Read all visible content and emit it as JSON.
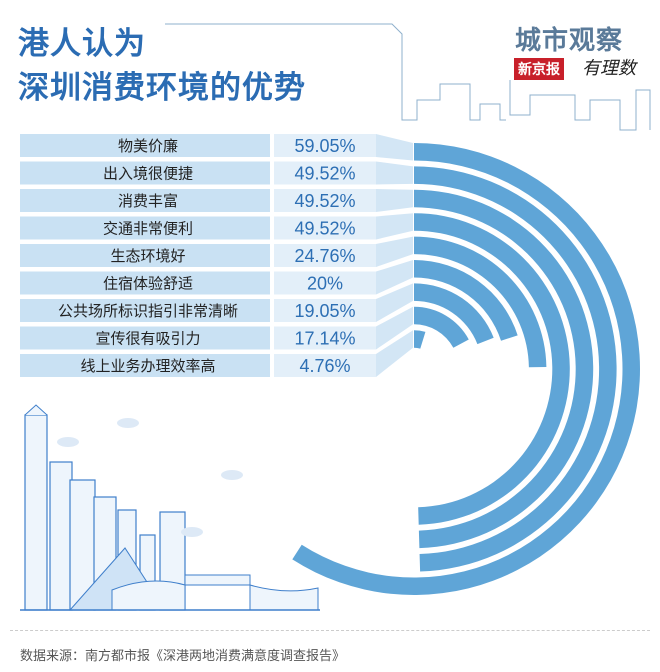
{
  "header": {
    "title_line1": "港人认为",
    "title_line2": "深圳消费环境的优势",
    "brand_column": "城市观察",
    "brand_paper": "新京报",
    "brand_sub": "有理数"
  },
  "footer": {
    "source": "数据来源：南方都市报《深港两地消费满意度调查报告》"
  },
  "colors": {
    "title": "#2b6cb3",
    "arc": "#5fa5d7",
    "label_box": "#c9e1f3",
    "value_box": "#e3eff9",
    "value_text": "#2d6fb4",
    "brand_red": "#c8202a"
  },
  "chart_data": {
    "type": "radial-bar",
    "unit": "%",
    "full_circle_value": 100,
    "categories": [
      "物美价廉",
      "出入境很便捷",
      "消费丰富",
      "交通非常便利",
      "生态环境好",
      "住宿体验舒适",
      "公共场所标识指引非常清晰",
      "宣传很有吸引力",
      "线上业务办理效率高"
    ],
    "values": [
      59.05,
      49.52,
      49.52,
      49.52,
      24.76,
      20,
      19.05,
      17.14,
      4.76
    ],
    "value_labels": [
      "59.05%",
      "49.52%",
      "49.52%",
      "49.52%",
      "24.76%",
      "20%",
      "19.05%",
      "17.14%",
      "4.76%"
    ]
  }
}
